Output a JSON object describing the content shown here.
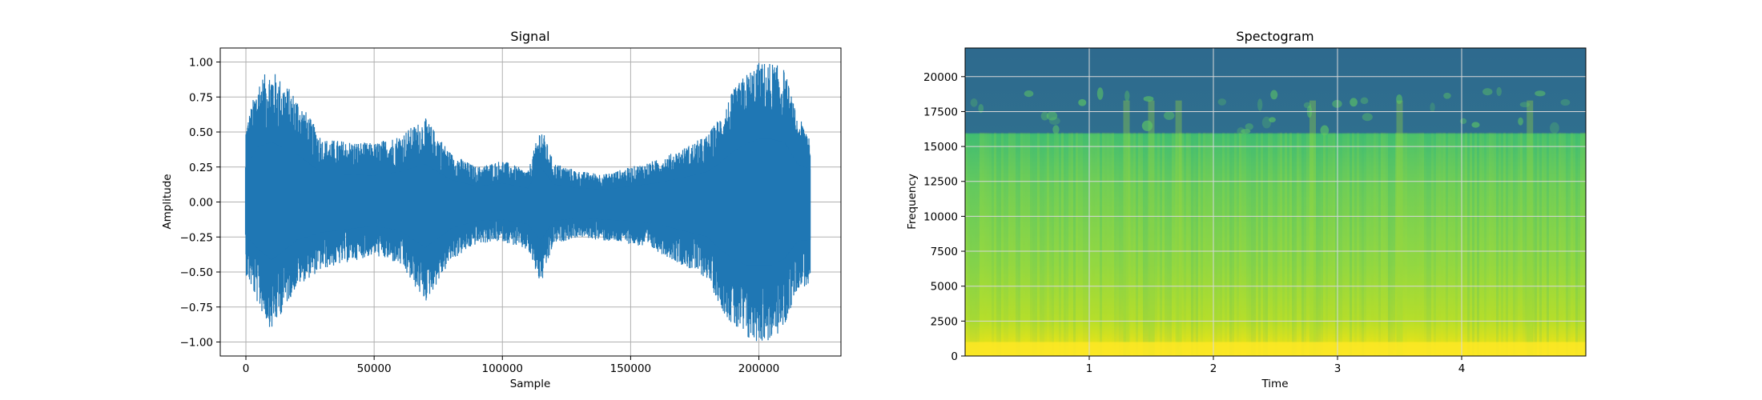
{
  "chart_data": [
    {
      "type": "line",
      "title": "Signal",
      "xlabel": "Sample",
      "ylabel": "Amplitude",
      "xlim": [
        -10000,
        232000
      ],
      "ylim": [
        -1.1,
        1.1
      ],
      "xticks": [
        0,
        50000,
        100000,
        150000,
        200000
      ],
      "xtick_labels": [
        "0",
        "50000",
        "100000",
        "150000",
        "200000"
      ],
      "yticks": [
        -1.0,
        -0.75,
        -0.5,
        -0.25,
        0.0,
        0.25,
        0.5,
        0.75,
        1.0
      ],
      "ytick_labels": [
        "−1.00",
        "−0.75",
        "−0.50",
        "−0.25",
        "0.00",
        "0.25",
        "0.50",
        "0.75",
        "1.00"
      ],
      "grid": true,
      "line_color": "#1f77b4",
      "envelope": {
        "x": [
          0,
          5000,
          10000,
          20000,
          30000,
          50000,
          60000,
          70000,
          80000,
          90000,
          100000,
          110000,
          115000,
          120000,
          130000,
          140000,
          150000,
          160000,
          170000,
          180000,
          185000,
          190000,
          195000,
          200000,
          205000,
          210000,
          215000,
          220000
        ],
        "upper": [
          0.55,
          0.88,
          0.95,
          0.75,
          0.45,
          0.42,
          0.48,
          0.6,
          0.35,
          0.25,
          0.3,
          0.22,
          0.55,
          0.28,
          0.22,
          0.2,
          0.25,
          0.3,
          0.38,
          0.48,
          0.62,
          0.8,
          0.92,
          1.0,
          1.0,
          0.95,
          0.6,
          0.52
        ],
        "lower": [
          -0.52,
          -0.75,
          -0.92,
          -0.6,
          -0.48,
          -0.38,
          -0.45,
          -0.72,
          -0.42,
          -0.3,
          -0.28,
          -0.35,
          -0.6,
          -0.3,
          -0.25,
          -0.28,
          -0.3,
          -0.35,
          -0.45,
          -0.55,
          -0.75,
          -0.9,
          -1.0,
          -1.0,
          -1.0,
          -0.9,
          -0.62,
          -0.6
        ]
      }
    },
    {
      "type": "heatmap",
      "title": "Spectogram",
      "xlabel": "Time",
      "ylabel": "Frequency",
      "xlim": [
        0,
        5.0
      ],
      "ylim": [
        0,
        22050
      ],
      "xticks": [
        1,
        2,
        3,
        4
      ],
      "xtick_labels": [
        "1",
        "2",
        "3",
        "4"
      ],
      "yticks": [
        0,
        2500,
        5000,
        7500,
        10000,
        12500,
        15000,
        17500,
        20000
      ],
      "ytick_labels": [
        "0",
        "2500",
        "5000",
        "7500",
        "10000",
        "12500",
        "15000",
        "17500",
        "20000"
      ],
      "grid": true,
      "colormap": "viridis",
      "cutoff_frequency": 16000,
      "colors": {
        "high": "#fde725",
        "mid_high": "#9fda3a",
        "mid": "#5ec962",
        "mid_low": "#2cb07f",
        "low": "#21918c",
        "lowest": "#2c728e",
        "floor": "#31688e"
      }
    }
  ]
}
